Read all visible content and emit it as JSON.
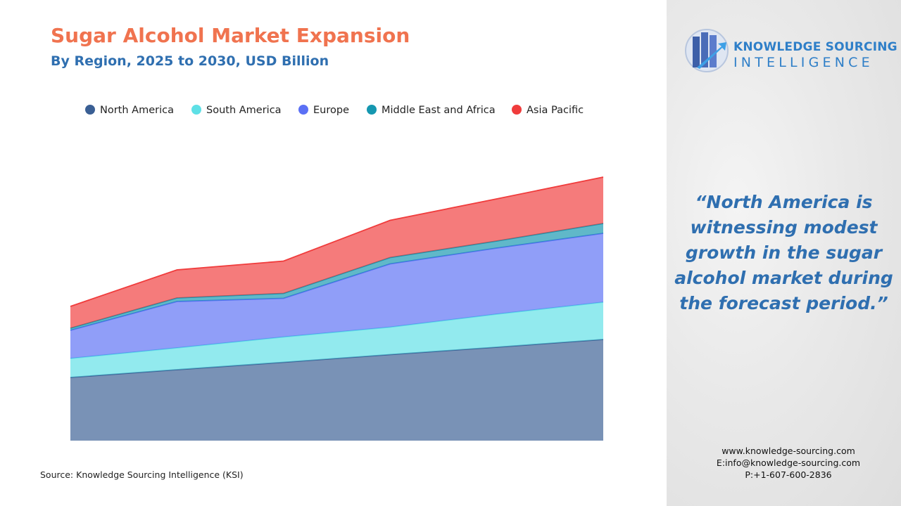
{
  "chart_data": {
    "type": "stacked-area",
    "title": "Sugar Alcohol Market Expansion",
    "subtitle": "By Region, 2025 to 2030, USD Billion",
    "categories": [
      null,
      null,
      null,
      null,
      null,
      null
    ],
    "series": [
      {
        "name": "North America",
        "color": "#3a5f94",
        "values": [
          1.8,
          2.02,
          2.23,
          2.45,
          2.66,
          2.88
        ]
      },
      {
        "name": "South America",
        "color": "#5ee0e6",
        "values": [
          0.54,
          0.62,
          0.72,
          0.78,
          0.94,
          1.06
        ]
      },
      {
        "name": "Europe",
        "color": "#5b70f5",
        "values": [
          0.8,
          1.32,
          1.1,
          1.8,
          1.88,
          1.96
        ]
      },
      {
        "name": "Middle East and Africa",
        "color": "#1597b0",
        "values": [
          0.06,
          0.1,
          0.14,
          0.18,
          0.2,
          0.28
        ]
      },
      {
        "name": "Asia Pacific",
        "color": "#f03c3c",
        "values": [
          0.62,
          0.8,
          0.92,
          1.06,
          1.2,
          1.32
        ]
      }
    ],
    "legend": "top",
    "source": "Source: Knowledge Sourcing Intelligence (KSI)"
  },
  "sidebar": {
    "logo_line1": "KNOWLEDGE SOURCING",
    "logo_line2": "INTELLIGENCE",
    "quote": "“North America is witnessing modest growth in the sugar alcohol market during the forecast period.”",
    "website": "www.knowledge-sourcing.com",
    "email": "E:info@knowledge-sourcing.com",
    "phone": "P:+1-607-600-2836"
  }
}
